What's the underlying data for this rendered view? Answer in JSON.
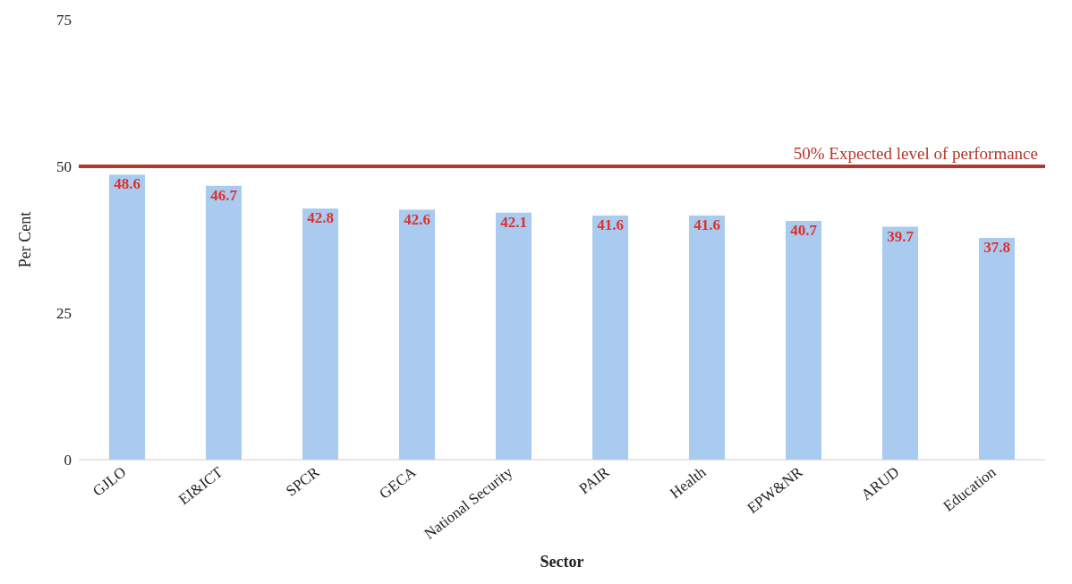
{
  "chart_data": {
    "type": "bar",
    "xlabel": "Sector",
    "ylabel": "Per Cent",
    "categories": [
      "GJLO",
      "EI&ICT",
      "SPCR",
      "GECA",
      "National Security",
      "PAIR",
      "Health",
      "EPW&NR",
      "ARUD",
      "Education"
    ],
    "values": [
      48.6,
      46.7,
      42.8,
      42.6,
      42.1,
      41.6,
      41.6,
      40.7,
      39.7,
      37.8
    ],
    "color": "#a9cbef",
    "data_labels": true,
    "ylim": [
      0,
      75
    ],
    "yticks": [
      0,
      25,
      50,
      75
    ],
    "ref_lines": [
      {
        "axis": "y",
        "value": 50,
        "label": "50% Expected level of performance",
        "color": "#b5372b"
      }
    ]
  }
}
